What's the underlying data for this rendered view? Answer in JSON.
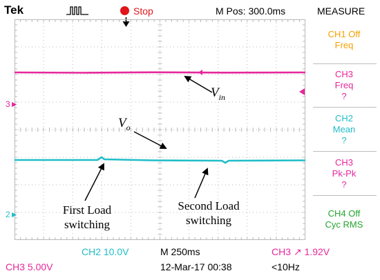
{
  "header": {
    "brand": "Tek",
    "trigger_icon": "trigger-pulse-icon",
    "run_state": "Stop",
    "position": "M Pos: 300.0ms"
  },
  "measure": {
    "title": "MEASURE",
    "items": [
      {
        "line1": "CH1 Off",
        "line2": "Freq",
        "line3": "",
        "color": "#f5a000"
      },
      {
        "line1": "CH3",
        "line2": "Freq",
        "line3": "?",
        "color": "#e6279c"
      },
      {
        "line1": "CH2",
        "line2": "Mean",
        "line3": "?",
        "color": "#1fbdc8"
      },
      {
        "line1": "CH3",
        "line2": "Pk-Pk",
        "line3": "?",
        "color": "#e6279c"
      },
      {
        "line1": "CH4 Off",
        "line2": "Cyc RMS",
        "line3": "",
        "color": "#23a52e"
      }
    ]
  },
  "channel_markers": {
    "ch3": "3",
    "ch2": "2"
  },
  "annotations": {
    "vin": "V",
    "vin_sub": "in",
    "vo": "V",
    "vo_sub": "o",
    "first_load_line1": "First Load",
    "first_load_line2": "switching",
    "second_load_line1": "Second Load",
    "second_load_line2": "switching"
  },
  "bottom": {
    "ch2_scale": "CH2  10.0V",
    "timebase": "M 250ms",
    "trigger": "CH3 ↗ 1.92V",
    "ch3_scale": "CH3  5.00V",
    "datetime": "12-Mar-17 00:38",
    "frequency": "<10Hz"
  },
  "colors": {
    "ch3": "#e6279c",
    "ch2": "#1fbdc8",
    "stop": "#e0161b",
    "grid": "#b8b8b8"
  }
}
